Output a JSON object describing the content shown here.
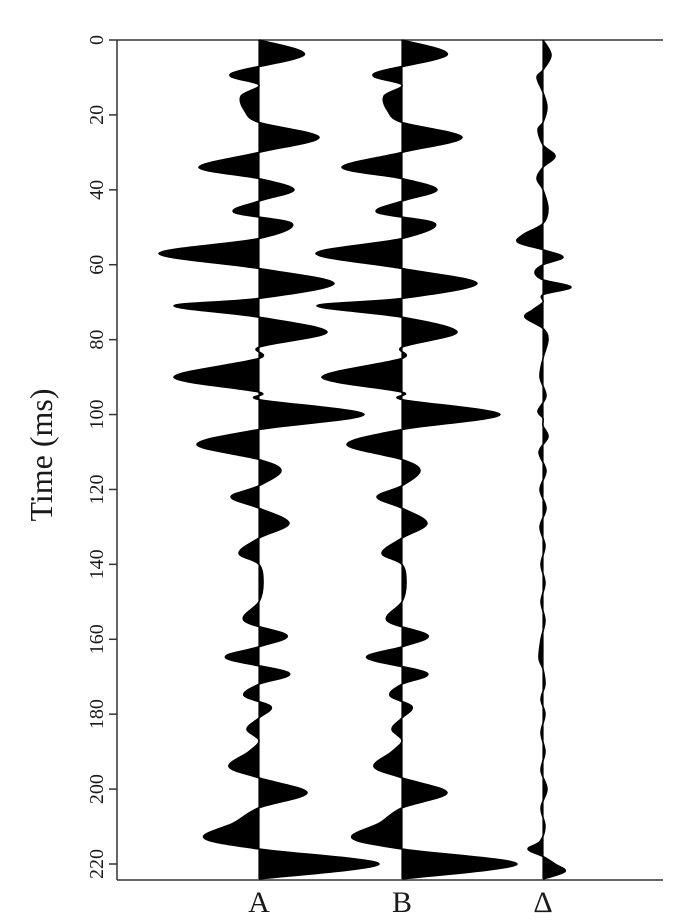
{
  "chart_data": {
    "type": "seismic wiggle",
    "ylabel": "Time (ms)",
    "ylim": [
      0,
      224
    ],
    "y_inverted": true,
    "yticks": [
      0,
      20,
      40,
      60,
      80,
      100,
      120,
      140,
      160,
      180,
      200,
      220
    ],
    "fill": "positive and negative lobes filled black",
    "colors": {
      "wiggle": "#000000",
      "axis": "#333333",
      "background": "#ffffff"
    },
    "series": [
      {
        "name": "A",
        "t": [
          0,
          4,
          9,
          12,
          15,
          19,
          22,
          26,
          30,
          34,
          37,
          40,
          43,
          46,
          49,
          53,
          57,
          61,
          65,
          69,
          71,
          74,
          78,
          82,
          85,
          90,
          94,
          96,
          100,
          104,
          108,
          112,
          115,
          119,
          122,
          125,
          129,
          133,
          137,
          140,
          145,
          150,
          155,
          159,
          162,
          165,
          169,
          172,
          175,
          178,
          181,
          184,
          187,
          190,
          194,
          197,
          201,
          205,
          209,
          213,
          216,
          220,
          224
        ],
        "amp": [
          0,
          0.45,
          -0.28,
          0,
          -0.18,
          -0.14,
          0,
          0.6,
          0,
          -0.6,
          0,
          0.35,
          0,
          -0.25,
          0.33,
          0,
          -1.0,
          0,
          0.75,
          0,
          -0.85,
          0,
          0.68,
          0,
          0,
          -0.85,
          0,
          0,
          1.05,
          0,
          -0.62,
          0,
          0.22,
          0,
          -0.28,
          0,
          0.3,
          0,
          -0.2,
          0,
          0.04,
          0,
          -0.15,
          0.28,
          0,
          -0.33,
          0.3,
          0,
          -0.15,
          0.12,
          0,
          -0.12,
          0,
          -0.1,
          -0.3,
          0,
          0.48,
          0,
          -0.25,
          -0.55,
          0,
          1.2,
          0
        ]
      },
      {
        "name": "B",
        "t": [
          0,
          4,
          9,
          12,
          15,
          19,
          22,
          26,
          30,
          34,
          37,
          40,
          43,
          46,
          49,
          53,
          57,
          61,
          65,
          69,
          71,
          74,
          78,
          82,
          85,
          90,
          94,
          96,
          100,
          104,
          108,
          112,
          115,
          119,
          122,
          125,
          129,
          133,
          137,
          140,
          145,
          150,
          155,
          159,
          162,
          165,
          169,
          172,
          175,
          178,
          181,
          184,
          187,
          190,
          194,
          197,
          201,
          205,
          209,
          213,
          216,
          220,
          224
        ],
        "amp": [
          0,
          0.45,
          -0.28,
          0,
          -0.18,
          -0.14,
          0,
          0.6,
          0,
          -0.6,
          0,
          0.35,
          0,
          -0.25,
          0.33,
          0,
          -0.86,
          0,
          0.75,
          0,
          -0.85,
          0,
          0.55,
          0,
          0,
          -0.8,
          0,
          0,
          0.98,
          0,
          -0.55,
          0,
          0.18,
          0,
          -0.25,
          0,
          0.25,
          0,
          -0.2,
          0,
          0.04,
          0,
          -0.15,
          0.26,
          0,
          -0.35,
          0.25,
          0,
          -0.12,
          0.1,
          0,
          -0.1,
          0,
          -0.1,
          -0.28,
          0,
          0.45,
          0,
          -0.22,
          -0.5,
          0,
          1.15,
          0
        ]
      },
      {
        "name": "Δ",
        "t": [
          0,
          4,
          8,
          10,
          14,
          18,
          22,
          24,
          28,
          31,
          34,
          37,
          40,
          45,
          49,
          52,
          54,
          56,
          58,
          60,
          62,
          64,
          66,
          68,
          70,
          72,
          74,
          77,
          80,
          85,
          90,
          95,
          99,
          101,
          103,
          106,
          110,
          115,
          120,
          125,
          130,
          135,
          140,
          145,
          150,
          155,
          160,
          165,
          168,
          172,
          176,
          180,
          185,
          190,
          195,
          200,
          205,
          210,
          214,
          216,
          218,
          220,
          222,
          224
        ],
        "amp": [
          0,
          0.08,
          0,
          -0.06,
          0,
          0.04,
          0,
          -0.05,
          0,
          0.12,
          0,
          -0.06,
          0,
          0.05,
          0,
          -0.2,
          -0.25,
          0,
          0.2,
          0,
          -0.08,
          0,
          0.28,
          0,
          0,
          -0.1,
          -0.18,
          0,
          0.05,
          0,
          -0.03,
          0.03,
          -0.05,
          0,
          0,
          0.05,
          -0.04,
          0.03,
          -0.03,
          0.03,
          -0.03,
          0.02,
          -0.02,
          0.02,
          -0.02,
          0.02,
          -0.02,
          -0.04,
          0,
          0.02,
          -0.02,
          0.02,
          -0.02,
          0.02,
          -0.02,
          0.04,
          -0.02,
          0.02,
          -0.03,
          -0.15,
          0,
          0.12,
          0.22,
          0
        ]
      }
    ]
  }
}
